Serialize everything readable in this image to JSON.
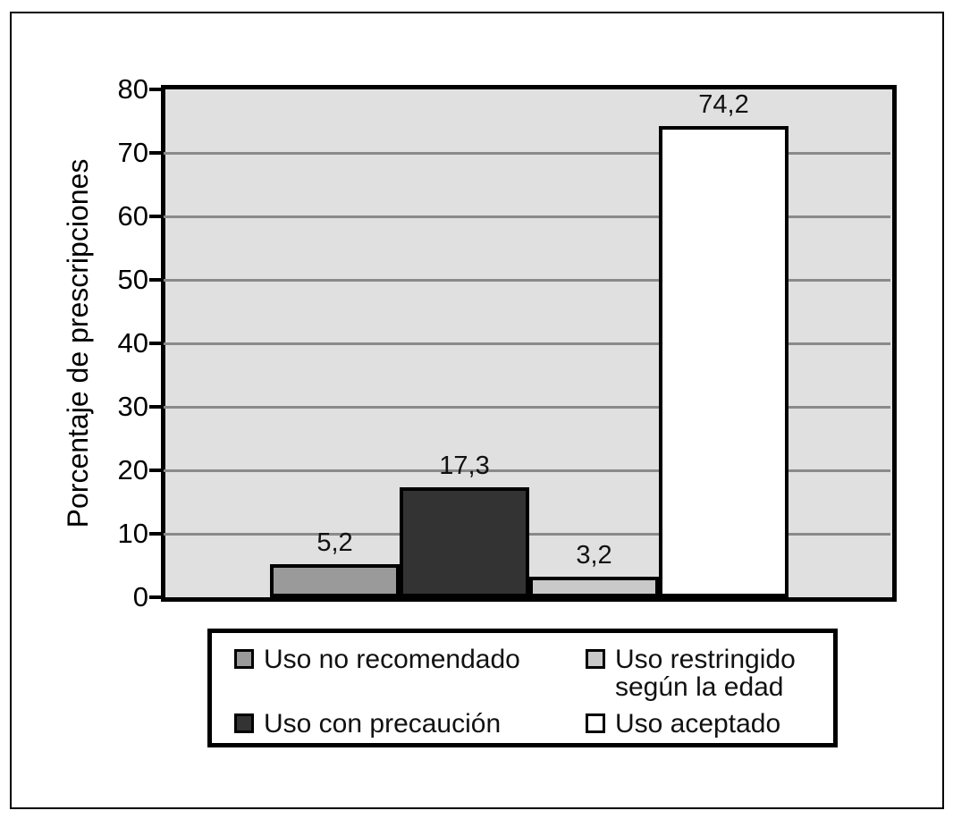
{
  "figure": {
    "background_color": "#ffffff",
    "frame_color": "#000000"
  },
  "chart_data": {
    "type": "bar",
    "title": "",
    "xlabel": "",
    "ylabel": "Porcentaje de prescripciones",
    "categories": [
      "Uso no recomendado",
      "Uso con precaución",
      "Uso restringido según la edad",
      "Uso aceptado"
    ],
    "values": [
      5.2,
      17.3,
      3.2,
      74.2
    ],
    "value_labels": [
      "5,2",
      "17,3",
      "3,2",
      "74,2"
    ],
    "ylim": [
      0,
      80
    ],
    "yticks": [
      0,
      10,
      20,
      30,
      40,
      50,
      60,
      70,
      80
    ],
    "grid": true,
    "plot_background": "#e0e0e0",
    "gridline_color": "#8a8a8a",
    "bar_colors": [
      "#9a9a9a",
      "#333333",
      "#c9c9c9",
      "#ffffff"
    ],
    "bar_border_color": "#000000",
    "legend_position": "bottom",
    "legend_items": [
      {
        "label": "Uso no recomendado",
        "label_lines": [
          "Uso no recomendado"
        ],
        "color": "#9a9a9a"
      },
      {
        "label": "Uso restringido según la edad",
        "label_lines": [
          "Uso restringido",
          "según la edad"
        ],
        "color": "#c9c9c9"
      },
      {
        "label": "Uso con precaución",
        "label_lines": [
          "Uso con precaución"
        ],
        "color": "#333333"
      },
      {
        "label": "Uso aceptado",
        "label_lines": [
          "Uso aceptado"
        ],
        "color": "#ffffff"
      }
    ]
  }
}
